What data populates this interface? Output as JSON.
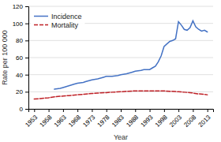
{
  "chart_data": {
    "type": "line",
    "xlabel": "Year",
    "ylabel": "Rate per 100 000",
    "xlim": [
      1951,
      2015
    ],
    "xticks": [
      1953,
      1958,
      1963,
      1968,
      1973,
      1978,
      1983,
      1988,
      1993,
      1998,
      2003,
      2008,
      2013
    ],
    "ylim": [
      0,
      120
    ],
    "yticks": [
      0,
      20,
      40,
      60,
      80,
      100,
      120
    ],
    "grid": true,
    "legend": "upper left",
    "series": [
      {
        "name": "Incidence",
        "color": "#4472C4",
        "line_style": "solid",
        "x": [
          1960,
          1962,
          1963,
          1965,
          1967,
          1968,
          1970,
          1971,
          1973,
          1975,
          1977,
          1978,
          1980,
          1982,
          1983,
          1985,
          1987,
          1988,
          1990,
          1991,
          1992,
          1993,
          1994,
          1995,
          1996,
          1997,
          1998,
          1999,
          2000,
          2001,
          2002,
          2003,
          2004,
          2005,
          2006,
          2007,
          2008,
          2009,
          2010,
          2011,
          2012,
          2013
        ],
        "values": [
          23,
          24,
          25,
          27,
          29,
          30,
          31,
          32,
          34,
          35,
          37,
          38,
          38,
          39,
          40,
          41,
          43,
          44,
          45,
          46,
          46,
          46,
          48,
          50,
          55,
          62,
          73,
          76,
          79,
          80,
          82,
          102,
          98,
          93,
          92,
          95,
          103,
          96,
          93,
          91,
          92,
          90
        ]
      },
      {
        "name": "Mortality",
        "color": "#BF2026",
        "line_style": "dashed",
        "x": [
          1953,
          1955,
          1958,
          1960,
          1963,
          1965,
          1968,
          1970,
          1973,
          1975,
          1978,
          1980,
          1983,
          1985,
          1988,
          1990,
          1993,
          1995,
          1997,
          1998,
          2000,
          2001,
          2003,
          2005,
          2007,
          2008,
          2010,
          2012,
          2013
        ],
        "values": [
          11.5,
          12,
          13,
          14,
          15,
          15.5,
          16.5,
          17,
          18,
          18.5,
          19,
          19.5,
          20,
          20.5,
          21,
          21,
          21,
          21,
          21,
          21,
          20.5,
          20.5,
          20,
          19.5,
          19,
          18.5,
          17.5,
          17,
          16.5
        ]
      }
    ]
  }
}
